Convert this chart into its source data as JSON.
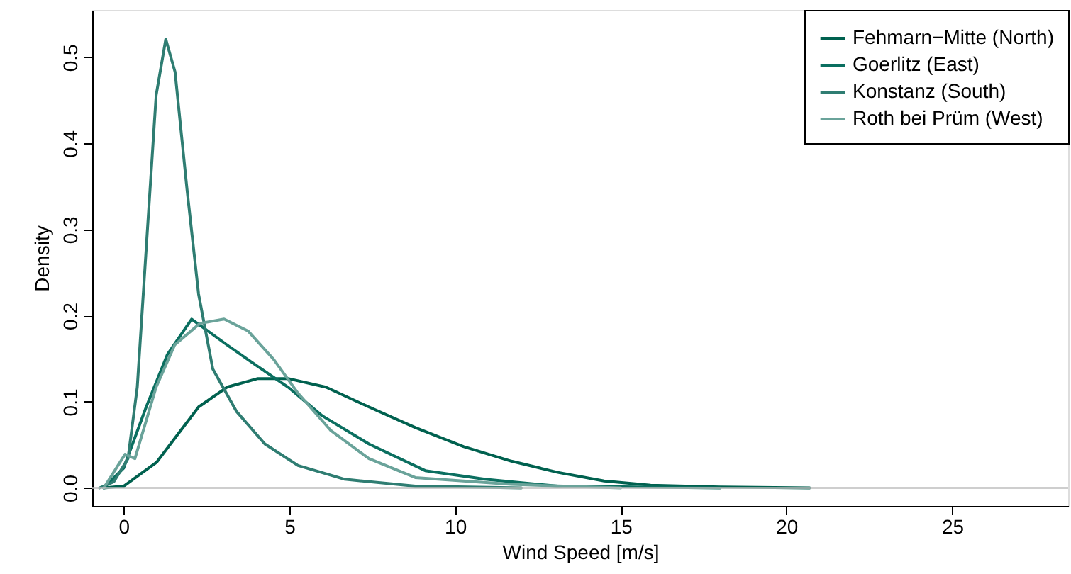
{
  "chart_data": {
    "type": "line",
    "xlabel": "Wind Speed [m/s]",
    "ylabel": "Density",
    "xlim": [
      -0.95,
      28.5
    ],
    "ylim": [
      -0.021,
      0.555
    ],
    "xticks": [
      0,
      5,
      10,
      15,
      20,
      25
    ],
    "yticks": [
      {
        "value": 0,
        "label": "0.0"
      },
      {
        "value": 0.1,
        "label": "0.1"
      },
      {
        "value": 0.2,
        "label": "0.2"
      },
      {
        "value": 0.3,
        "label": "0.3"
      },
      {
        "value": 0.4,
        "label": "0.4"
      },
      {
        "value": 0.5,
        "label": "0.5"
      }
    ],
    "grid": false,
    "legend": "top right",
    "marker": "none",
    "line_style": "solid",
    "ref_lines": [
      {
        "axis": "y",
        "value": 0,
        "color": "#bebebe"
      }
    ],
    "series": [
      {
        "name": "Fehmarn−Mitte (North)",
        "color": "#00614f",
        "x": [
          -0.6,
          0,
          1,
          2.26,
          3.12,
          4.05,
          4.96,
          6.1,
          7.4,
          8.8,
          10.25,
          11.7,
          13.1,
          14.5,
          15.9,
          18,
          20.7
        ],
        "values": [
          0,
          0.002,
          0.03,
          0.094,
          0.117,
          0.127,
          0.127,
          0.117,
          0.094,
          0.07,
          0.048,
          0.031,
          0.018,
          0.008,
          0.003,
          0.001,
          0
        ]
      },
      {
        "name": "Goerlitz (East)",
        "color": "#0b6f60",
        "x": [
          -0.6,
          0,
          0.68,
          1.32,
          2.05,
          3.12,
          3.97,
          4.96,
          5.98,
          7.4,
          9.1,
          10.9,
          13.1,
          18
        ],
        "values": [
          0,
          0.023,
          0.094,
          0.155,
          0.196,
          0.166,
          0.143,
          0.117,
          0.084,
          0.051,
          0.02,
          0.01,
          0.002,
          0
        ]
      },
      {
        "name": "Konstanz (South)",
        "color": "#2f7d72",
        "x": [
          -0.73,
          -0.3,
          0.13,
          0.41,
          0.7,
          0.98,
          1.27,
          1.55,
          1.91,
          2.26,
          2.69,
          3.4,
          4.26,
          5.26,
          6.67,
          8.8,
          12
        ],
        "values": [
          0,
          0.007,
          0.034,
          0.117,
          0.29,
          0.456,
          0.521,
          0.483,
          0.347,
          0.225,
          0.138,
          0.089,
          0.051,
          0.026,
          0.01,
          0.002,
          0
        ]
      },
      {
        "name": "Roth bei Prüm (West)",
        "color": "#6aa39a",
        "x": [
          -0.6,
          0.04,
          0.34,
          0.98,
          1.54,
          2.3,
          3.03,
          3.76,
          4.53,
          5.26,
          6.24,
          7.4,
          8.8,
          11.7,
          15
        ],
        "values": [
          0,
          0.039,
          0.034,
          0.117,
          0.166,
          0.191,
          0.196,
          0.182,
          0.149,
          0.11,
          0.067,
          0.034,
          0.012,
          0.004,
          0
        ]
      }
    ]
  }
}
